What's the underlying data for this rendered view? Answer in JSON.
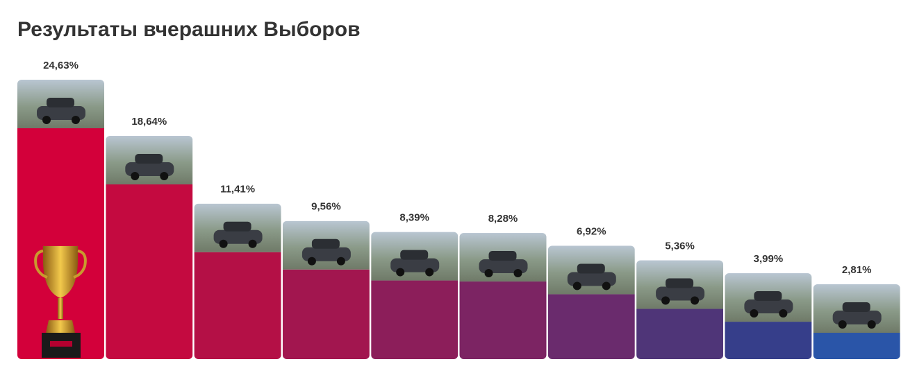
{
  "chart_data": {
    "type": "bar",
    "title": "Результаты вчерашних Выборов",
    "values": [
      24.63,
      18.64,
      11.41,
      9.56,
      8.39,
      8.28,
      6.92,
      5.36,
      3.99,
      2.81
    ],
    "value_labels": [
      "24,63%",
      "18,64%",
      "11,41%",
      "9,56%",
      "8,39%",
      "8,28%",
      "6,92%",
      "5,36%",
      "3,99%",
      "2,81%"
    ],
    "colors": [
      "#d3003a",
      "#c40a40",
      "#b41046",
      "#a2164f",
      "#8c1e5a",
      "#7c2463",
      "#6a2b6d",
      "#4f3578",
      "#363e8a",
      "#2a55a8"
    ]
  }
}
